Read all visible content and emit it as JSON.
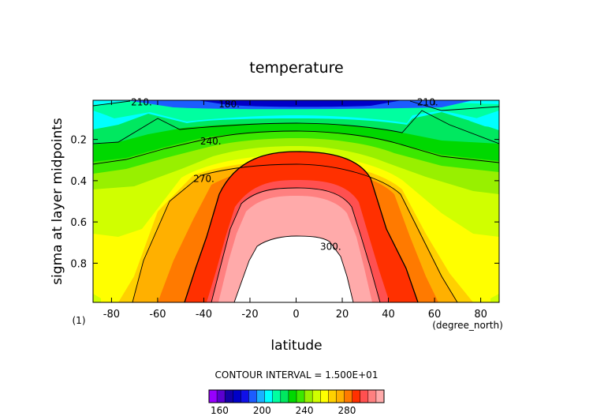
{
  "chart_data": {
    "type": "heatmap",
    "title": "temperature",
    "xlabel": "latitude",
    "xunits": "(degree_north)",
    "ylabel": "sigma at layer midpoints",
    "corner_label": "(1)",
    "contour_interval_text": "CONTOUR INTERVAL = 1.500E+01",
    "xlim": [
      -88,
      88
    ],
    "ylim": [
      0.01,
      0.99
    ],
    "y_inverted": true,
    "x_ticks": [
      -80,
      -60,
      -40,
      -20,
      0,
      20,
      40,
      60,
      80
    ],
    "y_ticks": [
      0.2,
      0.4,
      0.6,
      0.8
    ],
    "contour_labels": [
      {
        "text": "210.",
        "x": -67,
        "y": 0.02
      },
      {
        "text": "180.",
        "x": -29,
        "y": 0.03
      },
      {
        "text": "210.",
        "x": 57,
        "y": 0.02
      },
      {
        "text": "240.",
        "x": -37,
        "y": 0.21
      },
      {
        "text": "270.",
        "x": -40,
        "y": 0.39
      },
      {
        "text": "300.",
        "x": 15,
        "y": 0.72
      }
    ],
    "colorbar": {
      "min": 150,
      "step": 7.5,
      "tick_labels": [
        160,
        200,
        240,
        280
      ],
      "colors": [
        "#9800ff",
        "#5a00d0",
        "#1400a8",
        "#0000c8",
        "#1010e8",
        "#1c5cff",
        "#1ab0ff",
        "#00ffff",
        "#00ffa0",
        "#00e860",
        "#00d800",
        "#3ce800",
        "#98f000",
        "#d0ff00",
        "#ffff00",
        "#ffd000",
        "#ffb000",
        "#ff7a00",
        "#ff3000",
        "#ff5050",
        "#ff8080",
        "#ffaaaa"
      ]
    }
  }
}
